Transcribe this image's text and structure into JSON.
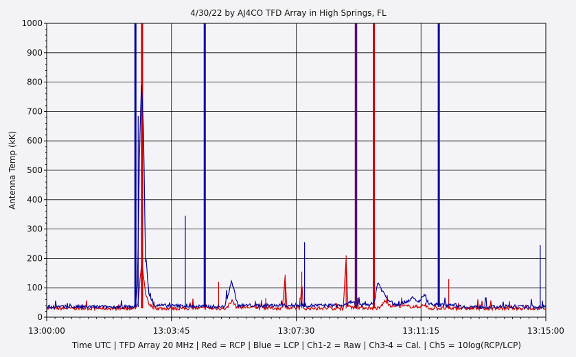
{
  "chart_data": {
    "type": "line",
    "title": "4/30/22  by  AJ4CO TFD Array  in  High Springs, FL",
    "ylabel": "Antenna Temp (kK)",
    "xlabel": "Time UTC | TFD Array 20 MHz | Red = RCP | Blue = LCP | Ch1-2 = Raw | Ch3-4 = Cal. | Ch5 = 10log(RCP/LCP)",
    "ylim": [
      0,
      1000
    ],
    "y_ticks": [
      0,
      100,
      200,
      300,
      400,
      500,
      600,
      700,
      800,
      900,
      1000
    ],
    "x_range": [
      "13:00:00",
      "13:15:00"
    ],
    "x_ticks": [
      "13:00:00",
      "13:03:45",
      "13:07:30",
      "13:11:15",
      "13:15:00"
    ],
    "grid": true,
    "colors": {
      "rcp": "#cc0000",
      "lcp": "#000099",
      "overlap": "#6b0f5f"
    },
    "series": [
      {
        "name": "Red = RCP",
        "color": "#cc0000",
        "baseline": 30,
        "points": [
          [
            "13:00:00",
            30
          ],
          [
            "13:02:40",
            30
          ],
          [
            "13:02:45",
            45
          ],
          [
            "13:02:48",
            120
          ],
          [
            "13:02:51",
            180
          ],
          [
            "13:02:54",
            150
          ],
          [
            "13:02:58",
            80
          ],
          [
            "13:03:05",
            40
          ],
          [
            "13:03:20",
            30
          ],
          [
            "13:04:40",
            30
          ],
          [
            "13:05:25",
            30
          ],
          [
            "13:05:30",
            50
          ],
          [
            "13:05:35",
            55
          ],
          [
            "13:05:42",
            35
          ],
          [
            "13:07:05",
            30
          ],
          [
            "13:07:10",
            145
          ],
          [
            "13:07:13",
            30
          ],
          [
            "13:07:37",
            30
          ],
          [
            "13:07:40",
            115
          ],
          [
            "13:07:43",
            30
          ],
          [
            "13:08:55",
            30
          ],
          [
            "13:09:00",
            210
          ],
          [
            "13:09:03",
            35
          ],
          [
            "13:10:00",
            30
          ],
          [
            "13:10:10",
            55
          ],
          [
            "13:10:20",
            40
          ],
          [
            "13:11:10",
            35
          ],
          [
            "13:11:20",
            40
          ],
          [
            "13:11:30",
            30
          ],
          [
            "13:15:00",
            30
          ]
        ],
        "spikes": [
          [
            "13:02:52",
            1000
          ],
          [
            "13:05:10",
            120
          ],
          [
            "13:06:35",
            65
          ],
          [
            "13:07:10",
            145
          ],
          [
            "13:07:40",
            155
          ],
          [
            "13:09:00",
            210
          ],
          [
            "13:09:50",
            1000
          ],
          [
            "13:12:05",
            130
          ]
        ]
      },
      {
        "name": "Blue = LCP",
        "color": "#000099",
        "baseline": 35,
        "points": [
          [
            "13:00:00",
            35
          ],
          [
            "13:02:40",
            35
          ],
          [
            "13:02:44",
            130
          ],
          [
            "13:02:47",
            520
          ],
          [
            "13:02:49",
            680
          ],
          [
            "13:02:51",
            795
          ],
          [
            "13:02:53",
            720
          ],
          [
            "13:02:55",
            600
          ],
          [
            "13:02:58",
            200
          ],
          [
            "13:03:05",
            70
          ],
          [
            "13:03:15",
            40
          ],
          [
            "13:05:20",
            35
          ],
          [
            "13:05:28",
            80
          ],
          [
            "13:05:33",
            125
          ],
          [
            "13:05:38",
            90
          ],
          [
            "13:05:45",
            40
          ],
          [
            "13:09:00",
            40
          ],
          [
            "13:09:10",
            55
          ],
          [
            "13:09:20",
            40
          ],
          [
            "13:09:50",
            45
          ],
          [
            "13:09:57",
            120
          ],
          [
            "13:10:05",
            90
          ],
          [
            "13:10:15",
            60
          ],
          [
            "13:10:30",
            40
          ],
          [
            "13:10:50",
            55
          ],
          [
            "13:11:00",
            65
          ],
          [
            "13:11:10",
            50
          ],
          [
            "13:11:20",
            75
          ],
          [
            "13:11:30",
            45
          ],
          [
            "13:12:00",
            40
          ],
          [
            "13:12:10",
            45
          ],
          [
            "13:12:30",
            35
          ],
          [
            "13:15:00",
            35
          ]
        ],
        "spikes": [
          [
            "13:02:40",
            1000
          ],
          [
            "13:02:45",
            685
          ],
          [
            "13:04:10",
            345
          ],
          [
            "13:04:45",
            1000
          ],
          [
            "13:07:45",
            255
          ],
          [
            "13:09:18",
            1000
          ],
          [
            "13:11:47",
            1000
          ],
          [
            "13:11:48",
            595
          ],
          [
            "13:14:50",
            245
          ]
        ]
      }
    ]
  }
}
